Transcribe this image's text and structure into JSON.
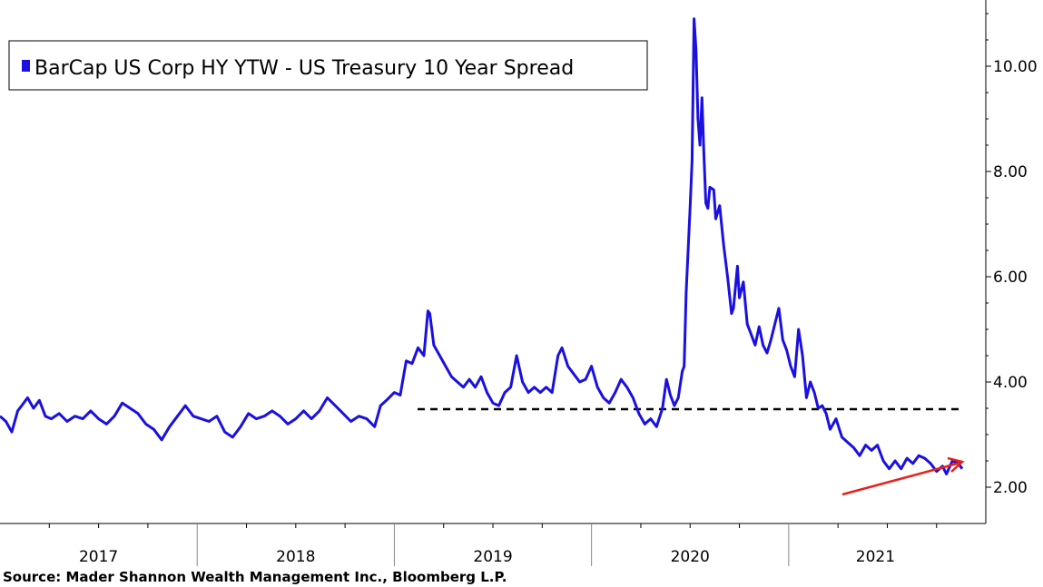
{
  "chart_data": {
    "type": "line",
    "legend": {
      "label": "BarCap US Corp HY YTW -  US Treasury 10 Year Spread",
      "placement": "top-left"
    },
    "source": "Source: Mader Shannon Wealth Management Inc., Bloomberg L.P.",
    "x_range": [
      2017.0,
      2021.88
    ],
    "ylim": [
      1.3,
      11.0
    ],
    "y_axis_side": "right",
    "y_ticks": [
      {
        "value": 2,
        "label": "2.00"
      },
      {
        "value": 4,
        "label": "4.00"
      },
      {
        "value": 6,
        "label": "6.00"
      },
      {
        "value": 8,
        "label": "8.00"
      },
      {
        "value": 10,
        "label": "10.00"
      }
    ],
    "x_categories": [
      {
        "label": "2017",
        "start": 2017,
        "end": 2018
      },
      {
        "label": "2018",
        "start": 2018,
        "end": 2019
      },
      {
        "label": "2019",
        "start": 2019,
        "end": 2020
      },
      {
        "label": "2020",
        "start": 2020,
        "end": 2021
      },
      {
        "label": "2021",
        "start": 2021,
        "end": 2021.88
      }
    ],
    "grid": false,
    "series": [
      {
        "color": "#1a10e0",
        "points": [
          [
            2017.0,
            3.35
          ],
          [
            2017.03,
            3.25
          ],
          [
            2017.06,
            3.05
          ],
          [
            2017.09,
            3.45
          ],
          [
            2017.11,
            3.55
          ],
          [
            2017.14,
            3.7
          ],
          [
            2017.17,
            3.5
          ],
          [
            2017.2,
            3.65
          ],
          [
            2017.23,
            3.35
          ],
          [
            2017.26,
            3.3
          ],
          [
            2017.3,
            3.4
          ],
          [
            2017.34,
            3.25
          ],
          [
            2017.38,
            3.35
          ],
          [
            2017.42,
            3.3
          ],
          [
            2017.46,
            3.45
          ],
          [
            2017.5,
            3.3
          ],
          [
            2017.54,
            3.2
          ],
          [
            2017.58,
            3.35
          ],
          [
            2017.62,
            3.6
          ],
          [
            2017.66,
            3.5
          ],
          [
            2017.7,
            3.4
          ],
          [
            2017.74,
            3.2
          ],
          [
            2017.78,
            3.1
          ],
          [
            2017.82,
            2.9
          ],
          [
            2017.86,
            3.15
          ],
          [
            2017.9,
            3.35
          ],
          [
            2017.94,
            3.55
          ],
          [
            2017.98,
            3.35
          ],
          [
            2018.02,
            3.3
          ],
          [
            2018.06,
            3.25
          ],
          [
            2018.1,
            3.35
          ],
          [
            2018.14,
            3.05
          ],
          [
            2018.18,
            2.95
          ],
          [
            2018.22,
            3.15
          ],
          [
            2018.26,
            3.4
          ],
          [
            2018.3,
            3.3
          ],
          [
            2018.34,
            3.35
          ],
          [
            2018.38,
            3.45
          ],
          [
            2018.42,
            3.35
          ],
          [
            2018.46,
            3.2
          ],
          [
            2018.5,
            3.3
          ],
          [
            2018.54,
            3.45
          ],
          [
            2018.58,
            3.3
          ],
          [
            2018.62,
            3.45
          ],
          [
            2018.66,
            3.7
          ],
          [
            2018.7,
            3.55
          ],
          [
            2018.74,
            3.4
          ],
          [
            2018.78,
            3.25
          ],
          [
            2018.82,
            3.35
          ],
          [
            2018.86,
            3.3
          ],
          [
            2018.9,
            3.15
          ],
          [
            2018.93,
            3.55
          ],
          [
            2018.96,
            3.65
          ],
          [
            2019.0,
            3.8
          ],
          [
            2019.03,
            3.75
          ],
          [
            2019.06,
            4.4
          ],
          [
            2019.09,
            4.35
          ],
          [
            2019.12,
            4.65
          ],
          [
            2019.15,
            4.5
          ],
          [
            2019.17,
            5.35
          ],
          [
            2019.18,
            5.3
          ],
          [
            2019.2,
            4.7
          ],
          [
            2019.23,
            4.5
          ],
          [
            2019.26,
            4.3
          ],
          [
            2019.29,
            4.1
          ],
          [
            2019.32,
            4.0
          ],
          [
            2019.35,
            3.9
          ],
          [
            2019.38,
            4.05
          ],
          [
            2019.41,
            3.9
          ],
          [
            2019.44,
            4.1
          ],
          [
            2019.47,
            3.8
          ],
          [
            2019.5,
            3.6
          ],
          [
            2019.53,
            3.55
          ],
          [
            2019.56,
            3.8
          ],
          [
            2019.59,
            3.9
          ],
          [
            2019.62,
            4.5
          ],
          [
            2019.65,
            4.0
          ],
          [
            2019.68,
            3.8
          ],
          [
            2019.71,
            3.9
          ],
          [
            2019.74,
            3.8
          ],
          [
            2019.77,
            3.9
          ],
          [
            2019.8,
            3.8
          ],
          [
            2019.83,
            4.5
          ],
          [
            2019.85,
            4.65
          ],
          [
            2019.88,
            4.3
          ],
          [
            2019.91,
            4.15
          ],
          [
            2019.94,
            4.0
          ],
          [
            2019.97,
            4.05
          ],
          [
            2020.0,
            4.3
          ],
          [
            2020.03,
            3.9
          ],
          [
            2020.06,
            3.7
          ],
          [
            2020.09,
            3.6
          ],
          [
            2020.12,
            3.8
          ],
          [
            2020.15,
            4.05
          ],
          [
            2020.18,
            3.9
          ],
          [
            2020.21,
            3.7
          ],
          [
            2020.24,
            3.4
          ],
          [
            2020.27,
            3.2
          ],
          [
            2020.3,
            3.3
          ],
          [
            2020.33,
            3.15
          ],
          [
            2020.36,
            3.5
          ],
          [
            2020.38,
            4.05
          ],
          [
            2020.4,
            3.75
          ],
          [
            2020.42,
            3.55
          ],
          [
            2020.44,
            3.7
          ],
          [
            2020.46,
            4.2
          ],
          [
            2020.47,
            4.3
          ],
          [
            2020.48,
            5.7
          ],
          [
            2020.5,
            7.3
          ],
          [
            2020.51,
            8.2
          ],
          [
            2020.52,
            10.9
          ],
          [
            2020.53,
            10.3
          ],
          [
            2020.54,
            9.0
          ],
          [
            2020.55,
            8.5
          ],
          [
            2020.56,
            9.4
          ],
          [
            2020.57,
            8.3
          ],
          [
            2020.58,
            7.4
          ],
          [
            2020.59,
            7.3
          ],
          [
            2020.6,
            7.7
          ],
          [
            2020.62,
            7.65
          ],
          [
            2020.63,
            7.1
          ],
          [
            2020.65,
            7.35
          ],
          [
            2020.67,
            6.6
          ],
          [
            2020.69,
            6.0
          ],
          [
            2020.71,
            5.3
          ],
          [
            2020.72,
            5.4
          ],
          [
            2020.74,
            6.2
          ],
          [
            2020.75,
            5.6
          ],
          [
            2020.77,
            5.9
          ],
          [
            2020.79,
            5.1
          ],
          [
            2020.81,
            4.9
          ],
          [
            2020.83,
            4.7
          ],
          [
            2020.85,
            5.05
          ],
          [
            2020.87,
            4.7
          ],
          [
            2020.89,
            4.55
          ],
          [
            2020.91,
            4.8
          ],
          [
            2020.93,
            5.1
          ],
          [
            2020.95,
            5.4
          ],
          [
            2020.97,
            4.8
          ],
          [
            2020.99,
            4.6
          ],
          [
            2021.01,
            4.3
          ],
          [
            2021.03,
            4.1
          ],
          [
            2021.05,
            5.0
          ],
          [
            2021.07,
            4.5
          ],
          [
            2021.09,
            3.7
          ],
          [
            2021.11,
            4.0
          ],
          [
            2021.13,
            3.8
          ],
          [
            2021.15,
            3.5
          ],
          [
            2021.17,
            3.55
          ],
          [
            2021.19,
            3.4
          ],
          [
            2021.21,
            3.1
          ],
          [
            2021.24,
            3.3
          ],
          [
            2021.27,
            2.95
          ],
          [
            2021.3,
            2.85
          ],
          [
            2021.33,
            2.75
          ],
          [
            2021.36,
            2.6
          ],
          [
            2021.39,
            2.8
          ],
          [
            2021.42,
            2.7
          ],
          [
            2021.45,
            2.8
          ],
          [
            2021.48,
            2.5
          ],
          [
            2021.51,
            2.35
          ],
          [
            2021.54,
            2.5
          ],
          [
            2021.57,
            2.35
          ],
          [
            2021.6,
            2.55
          ],
          [
            2021.63,
            2.45
          ],
          [
            2021.66,
            2.6
          ],
          [
            2021.69,
            2.55
          ],
          [
            2021.72,
            2.45
          ],
          [
            2021.75,
            2.3
          ],
          [
            2021.78,
            2.4
          ],
          [
            2021.8,
            2.25
          ],
          [
            2021.83,
            2.5
          ],
          [
            2021.86,
            2.45
          ],
          [
            2021.88,
            2.35
          ]
        ]
      }
    ]
  }
}
